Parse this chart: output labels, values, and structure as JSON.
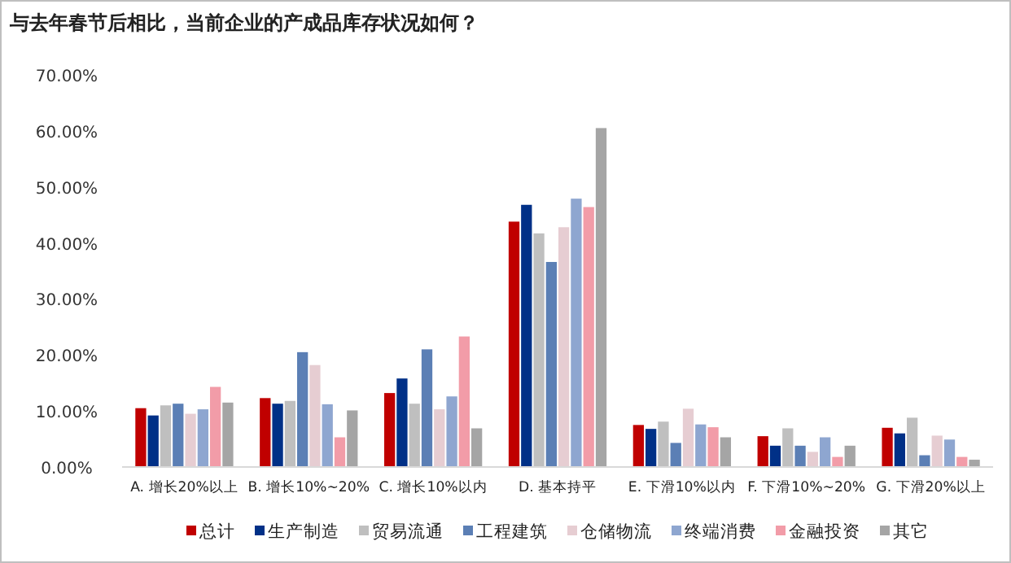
{
  "chart_data": {
    "type": "bar",
    "title": "与去年春节后相比，当前企业的产成品库存状况如何？",
    "categories": [
      "A. 增长20%以上",
      "B. 增长10%~20%",
      "C. 增长10%以内",
      "D. 基本持平",
      "E. 下滑10%以内",
      "F. 下滑10%~20%",
      "G. 下滑20%以上"
    ],
    "series": [
      {
        "name": "总计",
        "color": "#c00000",
        "values": [
          10.5,
          12.3,
          13.2,
          43.8,
          7.5,
          5.5,
          7.0
        ]
      },
      {
        "name": "生产制造",
        "color": "#003087",
        "values": [
          9.2,
          11.3,
          15.8,
          46.8,
          6.8,
          3.8,
          6.0
        ]
      },
      {
        "name": "贸易流通",
        "color": "#bfbfbf",
        "values": [
          11.0,
          11.8,
          11.3,
          41.7,
          8.1,
          6.9,
          8.8
        ]
      },
      {
        "name": "工程建筑",
        "color": "#5b7fb5",
        "values": [
          11.3,
          20.5,
          21.0,
          36.6,
          4.3,
          3.8,
          2.1
        ]
      },
      {
        "name": "仓储物流",
        "color": "#e6cdd2",
        "values": [
          9.5,
          18.2,
          10.3,
          42.8,
          10.4,
          2.7,
          5.6
        ]
      },
      {
        "name": "终端消费",
        "color": "#8ea6d0",
        "values": [
          10.3,
          11.2,
          12.6,
          47.9,
          7.6,
          5.3,
          4.9
        ]
      },
      {
        "name": "金融投资",
        "color": "#f29ca8",
        "values": [
          14.3,
          5.3,
          23.3,
          46.4,
          7.1,
          1.8,
          1.8
        ]
      },
      {
        "name": "其它",
        "color": "#a5a5a5",
        "values": [
          11.5,
          10.1,
          6.9,
          60.5,
          5.3,
          3.8,
          1.3
        ]
      }
    ],
    "ylim": [
      0,
      70
    ],
    "yticks": [
      {
        "value": 0,
        "label": "0.00%"
      },
      {
        "value": 10,
        "label": "10.00%"
      },
      {
        "value": 20,
        "label": "20.00%"
      },
      {
        "value": 30,
        "label": "30.00%"
      },
      {
        "value": 40,
        "label": "40.00%"
      },
      {
        "value": 50,
        "label": "50.00%"
      },
      {
        "value": 60,
        "label": "60.00%"
      },
      {
        "value": 70,
        "label": "70.00%"
      }
    ],
    "grid": false,
    "legend": "bottom"
  }
}
